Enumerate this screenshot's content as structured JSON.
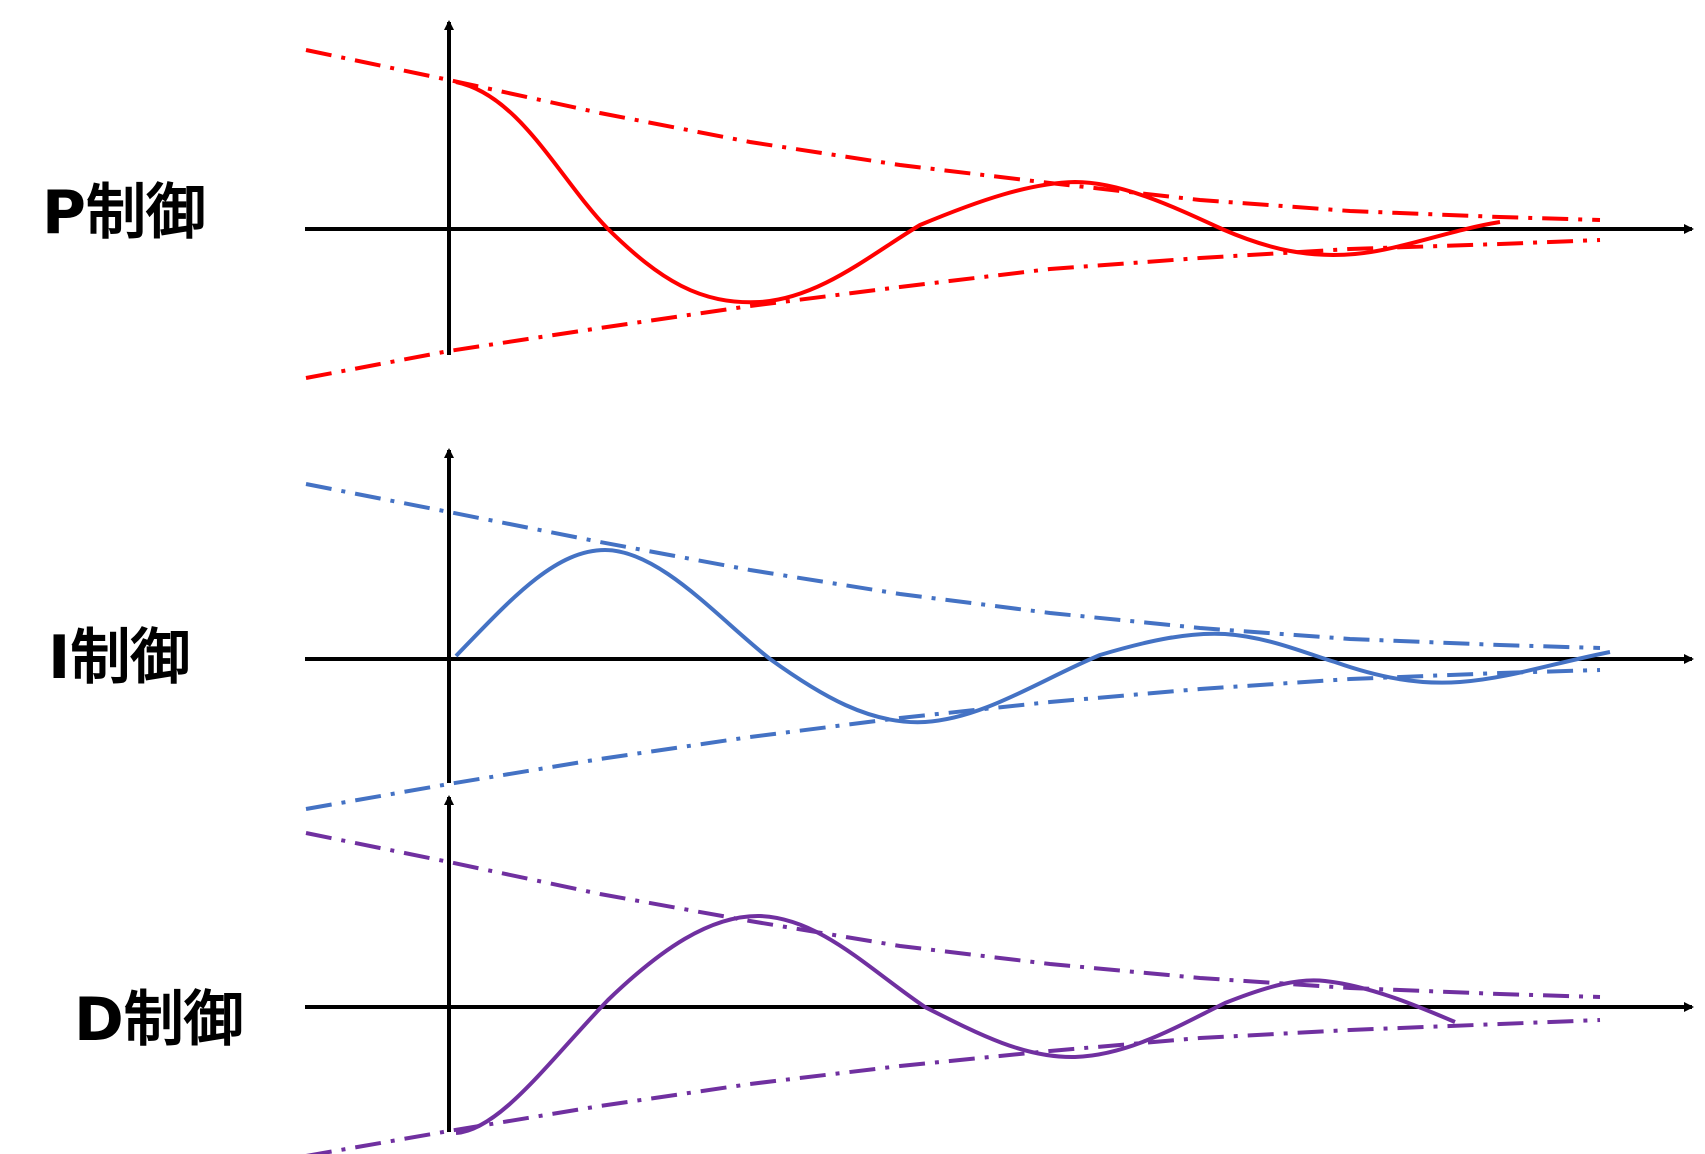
{
  "panels": [
    {
      "id": "p",
      "label": "P制御",
      "color": "#ff0000"
    },
    {
      "id": "i",
      "label": "I制御",
      "color": "#4472c4"
    },
    {
      "id": "d",
      "label": "D制御",
      "color": "#7030a0"
    }
  ],
  "axis_color": "#000000"
}
